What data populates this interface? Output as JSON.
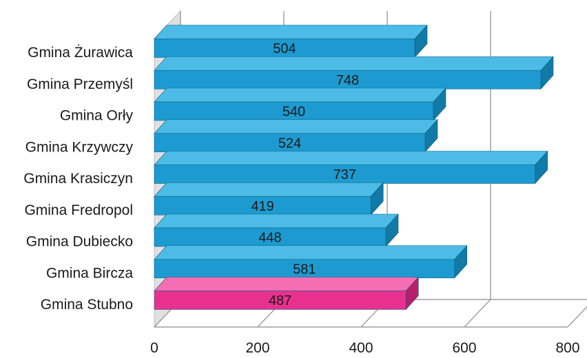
{
  "chart_data": {
    "type": "bar",
    "orientation": "horizontal",
    "style": "3d",
    "categories": [
      "Gmina Żurawica",
      "Gmina Przemyśl",
      "Gmina Orły",
      "Gmina Krzywczy",
      "Gmina Krasiczyn",
      "Gmina Fredropol",
      "Gmina Dubiecko",
      "Gmina Bircza",
      "Gmina Stubno"
    ],
    "values": [
      504,
      748,
      540,
      524,
      737,
      419,
      448,
      581,
      487
    ],
    "value_labels": [
      "504",
      "748",
      "540",
      "524",
      "737",
      "419",
      "448",
      "581",
      "487"
    ],
    "highlight_index": 8,
    "xlim": [
      0,
      800
    ],
    "xticks": [
      0,
      200,
      400,
      600,
      800
    ],
    "xtick_labels": [
      "0",
      "200",
      "400",
      "600",
      "800"
    ],
    "grid": true,
    "legend": "none",
    "colors": {
      "bar": "#1d9bd0",
      "bar_top": "#4cbce6",
      "bar_side": "#127aa6",
      "highlight": "#e8318f",
      "highlight_top": "#f56db2",
      "highlight_side": "#b81e6c",
      "grid": "#8a8a8a",
      "wall": "#c8c8c8"
    }
  }
}
